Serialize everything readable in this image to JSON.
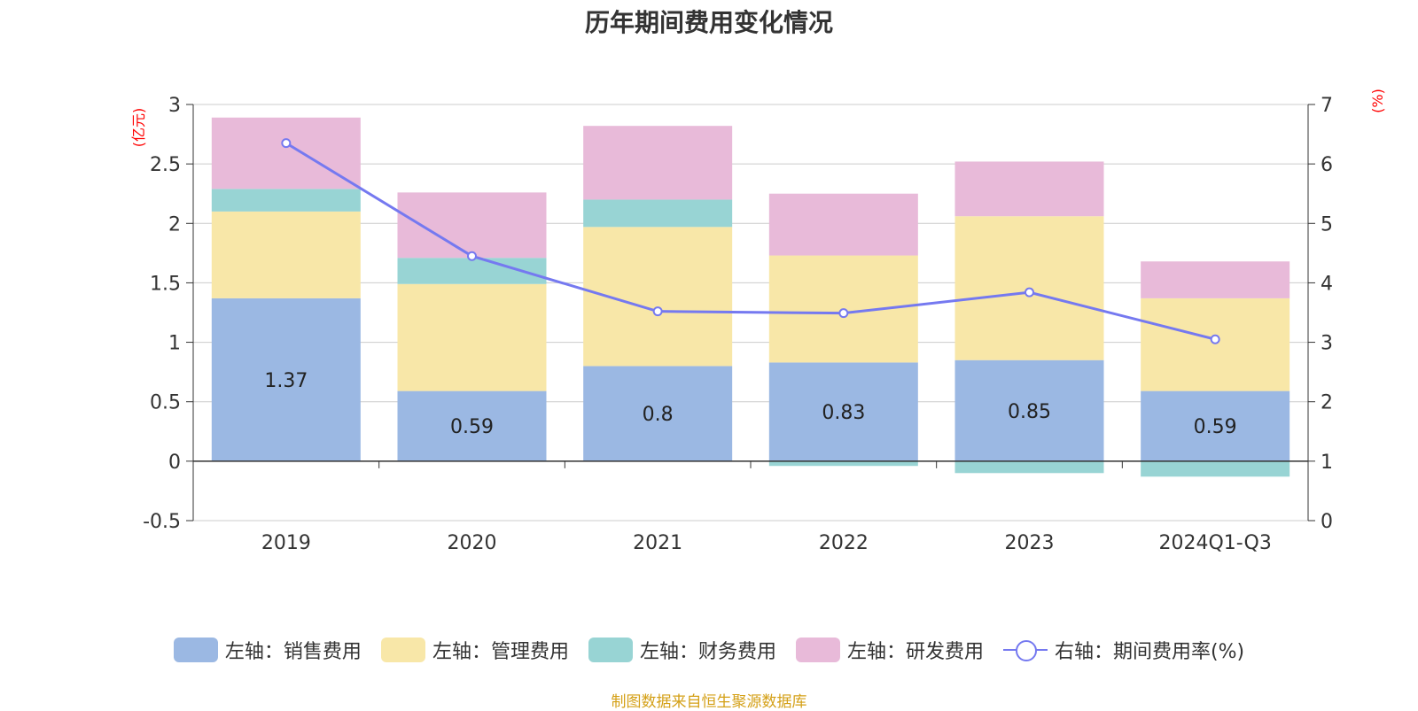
{
  "title": "历年期间费用变化情况",
  "source": "制图数据来自恒生聚源数据库",
  "chart_data": {
    "type": "bar",
    "stacked": true,
    "categories": [
      "2019",
      "2020",
      "2021",
      "2022",
      "2023",
      "2024Q1-Q3"
    ],
    "left_axis": {
      "unit": "(亿元)",
      "ylim": [
        -0.5,
        3
      ],
      "ticks": [
        "-0.5",
        "0",
        "0.5",
        "1",
        "1.5",
        "2",
        "2.5",
        "3"
      ]
    },
    "right_axis": {
      "unit": "(%)",
      "ylim": [
        0,
        7
      ],
      "ticks": [
        "0",
        "1",
        "2",
        "3",
        "4",
        "5",
        "6",
        "7"
      ]
    },
    "series": [
      {
        "name": "左轴：销售费用",
        "type": "bar",
        "axis": "left",
        "color": "#9bb8e3",
        "values": [
          1.37,
          0.59,
          0.8,
          0.83,
          0.85,
          0.59
        ],
        "labels": [
          "1.37",
          "0.59",
          "0.8",
          "0.83",
          "0.85",
          "0.59"
        ]
      },
      {
        "name": "左轴：管理费用",
        "type": "bar",
        "axis": "left",
        "color": "#f8e7a8",
        "values": [
          0.73,
          0.9,
          1.17,
          0.9,
          1.21,
          0.78
        ]
      },
      {
        "name": "左轴：财务费用",
        "type": "bar",
        "axis": "left",
        "color": "#98d4d4",
        "values": [
          0.19,
          0.22,
          0.23,
          -0.04,
          -0.1,
          -0.13
        ]
      },
      {
        "name": "左轴：研发费用",
        "type": "bar",
        "axis": "left",
        "color": "#e8bad9",
        "values": [
          0.6,
          0.55,
          0.62,
          0.52,
          0.46,
          0.31
        ]
      },
      {
        "name": "右轴：期间费用率(%)",
        "type": "line",
        "axis": "right",
        "color": "#7579f0",
        "values": [
          6.35,
          4.45,
          3.52,
          3.49,
          3.84,
          3.05
        ]
      }
    ],
    "grid": true,
    "legend_position": "bottom"
  }
}
